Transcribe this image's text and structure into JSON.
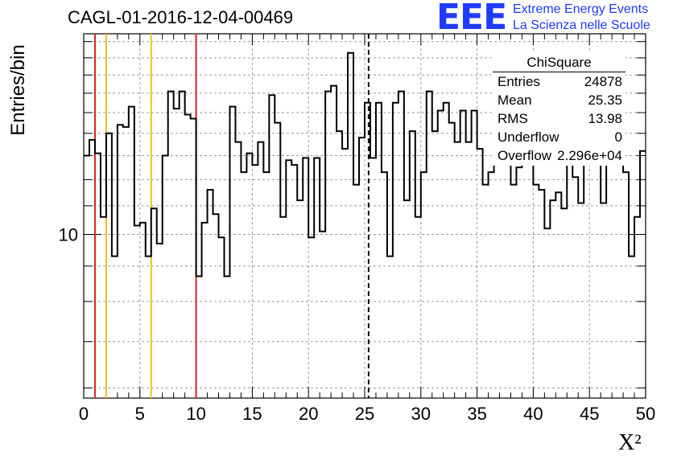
{
  "title": "CAGL-01-2016-12-04-00469",
  "logo": {
    "text": "EEE",
    "line1": "Extreme Energy Events",
    "line2": "La Scienza nelle Scuole",
    "color": "#1f3bff"
  },
  "stats_box": {
    "name": "ChiSquare",
    "rows": [
      {
        "label": "Entries",
        "value": "24878"
      },
      {
        "label": "Mean",
        "value": "25.35"
      },
      {
        "label": "RMS",
        "value": "13.98"
      },
      {
        "label": "Underflow",
        "value": "0"
      },
      {
        "label": "Overflow",
        "value": "2.296e+04"
      }
    ]
  },
  "chart_data": {
    "type": "histogram",
    "title": "CAGL-01-2016-12-04-00469",
    "xlabel": "X²",
    "ylabel": "Entries/bin",
    "x_range": [
      0,
      50
    ],
    "bin_width": 0.5,
    "y_scale": "log",
    "y_range": [
      5.8,
      19.5
    ],
    "x_ticks": [
      0,
      5,
      10,
      15,
      20,
      25,
      30,
      35,
      40,
      45,
      50
    ],
    "y_tick_labels": [
      {
        "value": 10,
        "label": "10"
      }
    ],
    "grid": true,
    "values": [
      13,
      13.7,
      13.1,
      10.6,
      14,
      9.3,
      14.4,
      14.3,
      15.3,
      10.3,
      10.4,
      9.3,
      10.9,
      9.7,
      13,
      16.1,
      15.2,
      16.1,
      14.9,
      14.7,
      8.7,
      10.4,
      11.6,
      10.7,
      9.9,
      8.7,
      15.3,
      13.6,
      12.3,
      13.1,
      12.6,
      13.6,
      12.3,
      15.9,
      14.5,
      10.6,
      12.8,
      12.6,
      11.2,
      12.9,
      9.9,
      12.9,
      10.1,
      16.1,
      16.4,
      14.1,
      13.3,
      18.3,
      11.8,
      13.8,
      15.5,
      12.9,
      15.5,
      12.3,
      9.3,
      15.5,
      16.1,
      11.2,
      14.1,
      10.6,
      12.3,
      16.1,
      14.1,
      15.1,
      15.5,
      14.5,
      13.6,
      15.1,
      13.6,
      15.1,
      13.3,
      11.8,
      12.3,
      14.7,
      12.9,
      13.4,
      11.8,
      12.5,
      13.8,
      13.1,
      11.8,
      11.6,
      10.2,
      11.2,
      11.5,
      10.9,
      14.5,
      12.1,
      11.1,
      14.5,
      13.3,
      14.1,
      11.1,
      14.5,
      13.6,
      13,
      12.3,
      9.3,
      10.6,
      13.2
    ],
    "markers": [
      {
        "x": 1,
        "color": "#e0201f"
      },
      {
        "x": 2,
        "color": "#f0c020"
      },
      {
        "x": 6,
        "color": "#f0c020"
      },
      {
        "x": 10,
        "color": "#e0201f"
      },
      {
        "x": 25.35,
        "color": "#000000",
        "style": "dashed"
      }
    ]
  }
}
